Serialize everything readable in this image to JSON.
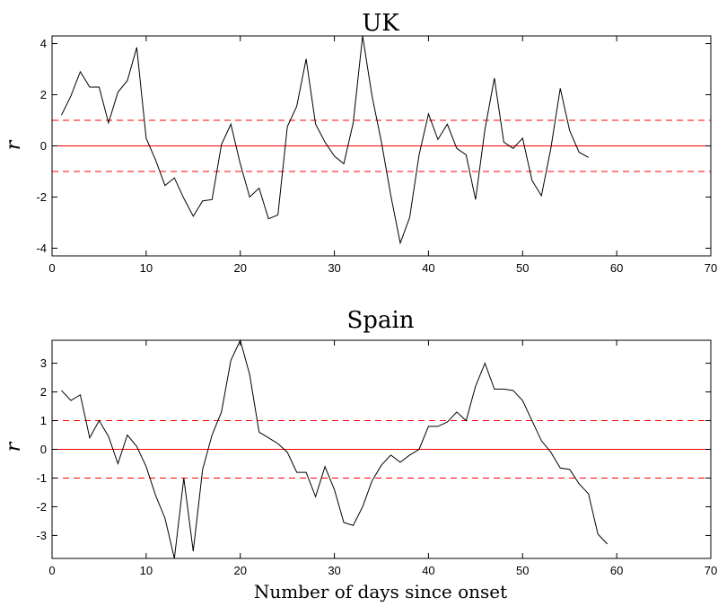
{
  "chart_data": [
    {
      "type": "line",
      "title": "UK",
      "xlabel": "",
      "ylabel": "r",
      "xlim": [
        0,
        70
      ],
      "ylim": [
        -4.3,
        4.3
      ],
      "xticks": [
        0,
        10,
        20,
        30,
        40,
        50,
        60,
        70
      ],
      "yticks": [
        -4,
        -2,
        0,
        2,
        4
      ],
      "reference_lines": [
        {
          "y": 1,
          "style": "dashed",
          "color": "#ff0000"
        },
        {
          "y": 0,
          "style": "solid",
          "color": "#ff0000"
        },
        {
          "y": -1,
          "style": "dashed",
          "color": "#ff0000"
        }
      ],
      "series": [
        {
          "color": "#000000",
          "x": [
            1,
            2,
            3,
            4,
            5,
            6,
            7,
            8,
            9,
            10,
            11,
            12,
            13,
            14,
            15,
            16,
            17,
            18,
            19,
            20,
            21,
            22,
            23,
            24,
            25,
            26,
            27,
            28,
            29,
            30,
            31,
            32,
            33,
            34,
            35,
            36,
            37,
            38,
            39,
            40,
            41,
            42,
            43,
            44,
            45,
            46,
            47,
            48,
            49,
            50,
            51,
            52,
            53,
            54,
            55,
            56,
            57
          ],
          "y": [
            1.2,
            1.95,
            2.9,
            2.3,
            2.3,
            0.9,
            2.1,
            2.55,
            3.85,
            0.3,
            -0.55,
            -1.55,
            -1.25,
            -2.05,
            -2.75,
            -2.15,
            -2.1,
            0.05,
            0.85,
            -0.7,
            -2.0,
            -1.65,
            -2.85,
            -2.7,
            0.75,
            1.55,
            3.4,
            0.85,
            0.15,
            -0.4,
            -0.7,
            0.9,
            4.3,
            1.95,
            0.15,
            -1.95,
            -3.8,
            -2.8,
            -0.35,
            1.25,
            0.25,
            0.85,
            -0.1,
            -0.35,
            -2.1,
            0.65,
            2.65,
            0.15,
            -0.1,
            0.3,
            -1.35,
            -1.95,
            -0.1,
            2.25,
            0.6,
            -0.25,
            -0.45
          ]
        }
      ]
    },
    {
      "type": "line",
      "title": "Spain",
      "xlabel": "Number of days since onset",
      "ylabel": "r",
      "xlim": [
        0,
        70
      ],
      "ylim": [
        -3.8,
        3.8
      ],
      "xticks": [
        0,
        10,
        20,
        30,
        40,
        50,
        60,
        70
      ],
      "yticks": [
        -3,
        -2,
        -1,
        0,
        1,
        2,
        3
      ],
      "reference_lines": [
        {
          "y": 1,
          "style": "dashed",
          "color": "#ff0000"
        },
        {
          "y": 0,
          "style": "solid",
          "color": "#ff0000"
        },
        {
          "y": -1,
          "style": "dashed",
          "color": "#ff0000"
        }
      ],
      "series": [
        {
          "color": "#000000",
          "x": [
            1,
            2,
            3,
            4,
            5,
            6,
            7,
            8,
            9,
            10,
            11,
            12,
            13,
            14,
            15,
            16,
            17,
            18,
            19,
            20,
            21,
            22,
            23,
            24,
            25,
            26,
            27,
            28,
            29,
            30,
            31,
            32,
            33,
            34,
            35,
            36,
            37,
            38,
            39,
            40,
            41,
            42,
            43,
            44,
            45,
            46,
            47,
            48,
            49,
            50,
            51,
            52,
            53,
            54,
            55,
            56,
            57,
            58,
            59
          ],
          "y": [
            2.05,
            1.7,
            1.9,
            0.4,
            1.0,
            0.45,
            -0.5,
            0.5,
            0.1,
            -0.6,
            -1.6,
            -2.4,
            -3.8,
            -1.0,
            -3.55,
            -0.7,
            0.5,
            1.3,
            3.1,
            3.8,
            2.6,
            0.6,
            0.4,
            0.2,
            -0.1,
            -0.8,
            -0.8,
            -1.65,
            -0.6,
            -1.4,
            -2.55,
            -2.65,
            -2.0,
            -1.1,
            -0.55,
            -0.2,
            -0.45,
            -0.2,
            0.0,
            0.8,
            0.8,
            0.95,
            1.3,
            1.0,
            2.2,
            3.0,
            2.1,
            2.1,
            2.05,
            1.7,
            1.0,
            0.3,
            -0.1,
            -0.65,
            -0.7,
            -1.2,
            -1.55,
            -2.95,
            -3.3
          ]
        }
      ]
    }
  ]
}
